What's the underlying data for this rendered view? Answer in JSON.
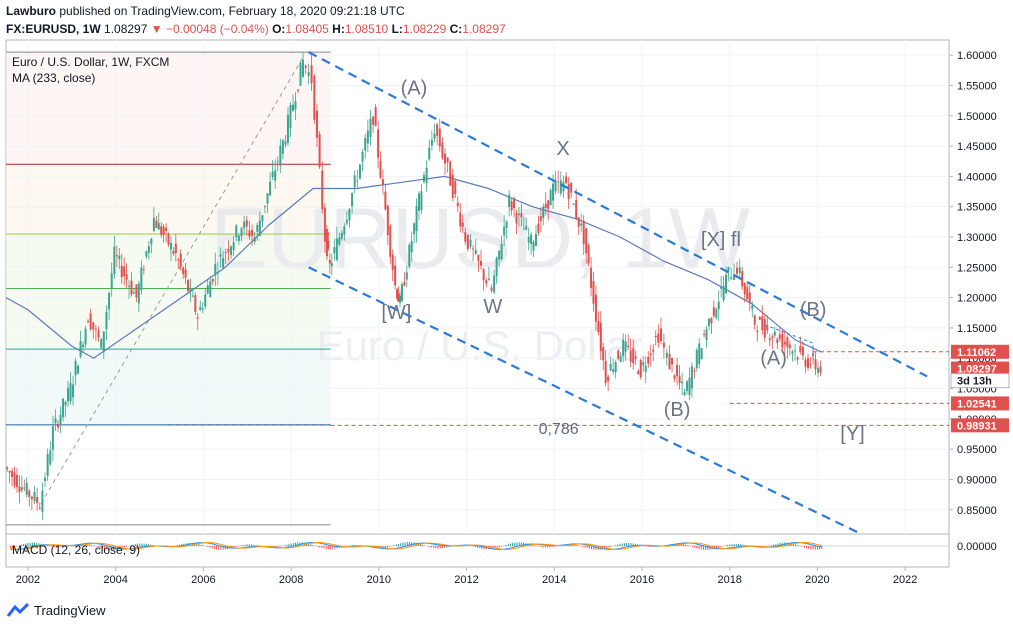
{
  "header": {
    "author": "Lawburo",
    "published_text": "published on TradingView.com, February 18, 2020 09:21:18 UTC",
    "symbol": "FX:EURUSD, 1W",
    "last": "1.08297",
    "change": "−0.00048 (−0.04%)",
    "o_label": "O:",
    "o": "1.08405",
    "h_label": "H:",
    "h": "1.08510",
    "l_label": "L:",
    "l": "1.08229",
    "c_label": "C:",
    "c": "1.08297"
  },
  "legend": {
    "main": "Euro / U.S. Dollar, 1W, FXCM",
    "ma": "MA (233, close)",
    "macd": "MACD (12, 26, close, 9)"
  },
  "watermark": {
    "symbol": "EURUSD, 1W",
    "name": "Euro / U.S. Dollar"
  },
  "footer": {
    "brand": "TradingView"
  },
  "colors": {
    "down": "#e0504d",
    "up": "#3aa58f",
    "ma": "#5b7ab8",
    "channel": "#2b7bd6",
    "label": "#6b7386"
  },
  "chart_data": {
    "type": "candlestick",
    "y_ticks": [
      "1.60000",
      "1.55000",
      "1.50000",
      "1.45000",
      "1.40000",
      "1.35000",
      "1.30000",
      "1.25000",
      "1.20000",
      "1.15000",
      "1.10000",
      "1.05000",
      "1.00000",
      "0.95000",
      "0.90000",
      "0.85000"
    ],
    "y_tick_values": [
      1.6,
      1.55,
      1.5,
      1.45,
      1.4,
      1.35,
      1.3,
      1.25,
      1.2,
      1.15,
      1.1,
      1.05,
      1.0,
      0.95,
      0.9,
      0.85
    ],
    "x_ticks": [
      "2002",
      "2004",
      "2006",
      "2008",
      "2010",
      "2012",
      "2014",
      "2016",
      "2018",
      "2020",
      "2022"
    ],
    "x_tick_values": [
      2002,
      2004,
      2006,
      2008,
      2010,
      2012,
      2014,
      2016,
      2018,
      2020,
      2022
    ],
    "xlim": [
      2001.5,
      2023
    ],
    "ylim": [
      0.81,
      1.625
    ],
    "price_path": [
      [
        2001.5,
        0.92
      ],
      [
        2002.0,
        0.88
      ],
      [
        2002.3,
        0.86
      ],
      [
        2002.6,
        0.98
      ],
      [
        2003.0,
        1.05
      ],
      [
        2003.4,
        1.17
      ],
      [
        2003.7,
        1.12
      ],
      [
        2004.0,
        1.27
      ],
      [
        2004.5,
        1.2
      ],
      [
        2004.9,
        1.33
      ],
      [
        2005.4,
        1.27
      ],
      [
        2005.9,
        1.17
      ],
      [
        2006.3,
        1.25
      ],
      [
        2006.9,
        1.32
      ],
      [
        2007.2,
        1.3
      ],
      [
        2007.9,
        1.47
      ],
      [
        2008.3,
        1.59
      ],
      [
        2008.5,
        1.56
      ],
      [
        2008.8,
        1.3
      ],
      [
        2008.9,
        1.25
      ],
      [
        2009.3,
        1.34
      ],
      [
        2009.9,
        1.5
      ],
      [
        2010.4,
        1.22
      ],
      [
        2010.5,
        1.19
      ],
      [
        2011.0,
        1.38
      ],
      [
        2011.3,
        1.48
      ],
      [
        2011.6,
        1.41
      ],
      [
        2012.0,
        1.3
      ],
      [
        2012.6,
        1.21
      ],
      [
        2013.0,
        1.36
      ],
      [
        2013.5,
        1.29
      ],
      [
        2014.0,
        1.38
      ],
      [
        2014.3,
        1.39
      ],
      [
        2014.7,
        1.3
      ],
      [
        2015.2,
        1.07
      ],
      [
        2015.6,
        1.12
      ],
      [
        2016.0,
        1.08
      ],
      [
        2016.4,
        1.14
      ],
      [
        2016.6,
        1.1
      ],
      [
        2017.0,
        1.04
      ],
      [
        2017.5,
        1.15
      ],
      [
        2018.0,
        1.24
      ],
      [
        2018.2,
        1.25
      ],
      [
        2018.6,
        1.16
      ],
      [
        2019.0,
        1.14
      ],
      [
        2019.4,
        1.12
      ],
      [
        2019.7,
        1.1
      ],
      [
        2020.1,
        1.083
      ]
    ],
    "ma_233": [
      [
        2001.5,
        1.2
      ],
      [
        2002.0,
        1.18
      ],
      [
        2003.0,
        1.12
      ],
      [
        2003.5,
        1.1
      ],
      [
        2004.5,
        1.15
      ],
      [
        2005.5,
        1.2
      ],
      [
        2006.5,
        1.25
      ],
      [
        2007.5,
        1.32
      ],
      [
        2008.5,
        1.38
      ],
      [
        2009.5,
        1.38
      ],
      [
        2010.5,
        1.39
      ],
      [
        2011.5,
        1.4
      ],
      [
        2012.5,
        1.38
      ],
      [
        2013.5,
        1.35
      ],
      [
        2014.5,
        1.33
      ],
      [
        2015.5,
        1.3
      ],
      [
        2016.5,
        1.26
      ],
      [
        2017.5,
        1.23
      ],
      [
        2018.5,
        1.19
      ],
      [
        2019.5,
        1.13
      ],
      [
        2020.1,
        1.11
      ]
    ],
    "channel_upper": [
      [
        2008.4,
        1.605
      ],
      [
        2022.5,
        1.07
      ]
    ],
    "channel_lower": [
      [
        2008.4,
        1.25
      ],
      [
        2021.0,
        0.81
      ]
    ],
    "fib_levels": [
      {
        "value": 1.605,
        "color": "#888888"
      },
      {
        "value": 1.42,
        "color": "#b22222"
      },
      {
        "value": 1.305,
        "color": "#9acd32"
      },
      {
        "value": 1.215,
        "color": "#4caf50"
      },
      {
        "value": 1.115,
        "color": "#26a69a"
      },
      {
        "value": 0.99,
        "color": "#1f5fa6",
        "label": "0,786"
      },
      {
        "value": 0.825,
        "color": "#888888"
      }
    ],
    "waves": [
      {
        "text": "(A)",
        "x": 2010.8,
        "y": 1.535
      },
      {
        "text": "X",
        "x": 2014.2,
        "y": 1.435
      },
      {
        "text": "[X] fl",
        "x": 2017.8,
        "y": 1.285
      },
      {
        "text": "(B)",
        "x": 2019.9,
        "y": 1.17
      },
      {
        "text": "(A)",
        "x": 2019.0,
        "y": 1.09
      },
      {
        "text": "[W]",
        "x": 2010.4,
        "y": 1.165
      },
      {
        "text": "W",
        "x": 2012.6,
        "y": 1.175
      },
      {
        "text": "(B)",
        "x": 2016.8,
        "y": 1.005
      },
      {
        "text": "[Y]",
        "x": 2020.8,
        "y": 0.965
      },
      {
        "text": "0,786",
        "x": 2014.1,
        "y": 0.975
      }
    ],
    "price_labels": [
      {
        "text": "1.11062",
        "value": 1.11062,
        "color": "#e0504d"
      },
      {
        "text": "1.08297",
        "value": 1.08297,
        "color": "#e0504d"
      },
      {
        "text": "3d 13h",
        "value": 1.063,
        "color": "#ffffff",
        "text_color": "#131722"
      },
      {
        "text": "1.02541",
        "value": 1.02541,
        "color": "#e0504d"
      },
      {
        "text": "0.98931",
        "value": 0.98931,
        "color": "#e0504d"
      }
    ],
    "macd_tick": "0.00000"
  }
}
